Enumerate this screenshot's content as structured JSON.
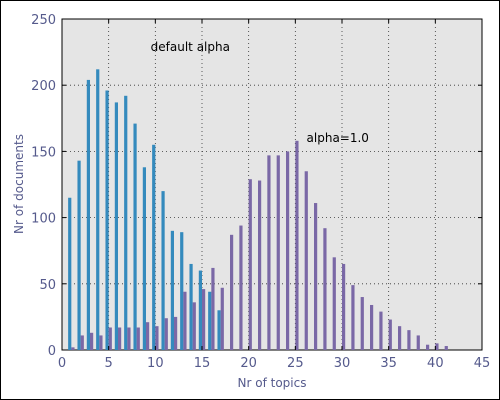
{
  "chart_data": {
    "type": "bar",
    "title": "",
    "xlabel": "Nr of topics",
    "ylabel": "Nr of documents",
    "xlim": [
      0,
      45
    ],
    "ylim": [
      0,
      250
    ],
    "grid": true,
    "x_ticks": [
      0,
      5,
      10,
      15,
      20,
      25,
      30,
      35,
      40,
      45
    ],
    "y_ticks": [
      0,
      50,
      100,
      150,
      200,
      250
    ],
    "series": [
      {
        "color": "#348abd",
        "x": [
          1,
          2,
          3,
          4,
          5,
          6,
          7,
          8,
          9,
          10,
          11,
          12,
          13,
          14,
          15,
          16,
          17
        ],
        "values": [
          115,
          143,
          204,
          212,
          196,
          187,
          192,
          171,
          138,
          155,
          120,
          90,
          89,
          65,
          60,
          44,
          30
        ]
      },
      {
        "color": "#7a68a6",
        "x": [
          1,
          2,
          3,
          4,
          5,
          6,
          7,
          8,
          9,
          10,
          11,
          12,
          13,
          14,
          15,
          16,
          17,
          18,
          19,
          20,
          21,
          22,
          23,
          24,
          25,
          26,
          27,
          28,
          29,
          30,
          31,
          32,
          33,
          34,
          35,
          36,
          37,
          38,
          39,
          40,
          41
        ],
        "values": [
          2,
          11,
          13,
          11,
          17,
          17,
          17,
          17,
          21,
          18,
          24,
          25,
          44,
          36,
          46,
          62,
          47,
          87,
          94,
          129,
          128,
          147,
          147,
          150,
          158,
          135,
          111,
          92,
          70,
          65,
          49,
          40,
          34,
          29,
          23,
          18,
          15,
          11,
          4,
          5,
          3
        ]
      }
    ],
    "annotations": [
      {
        "text": "default alpha",
        "x": 9.5,
        "y": 226
      },
      {
        "text": "alpha=1.0",
        "x": 26.2,
        "y": 157
      }
    ]
  }
}
